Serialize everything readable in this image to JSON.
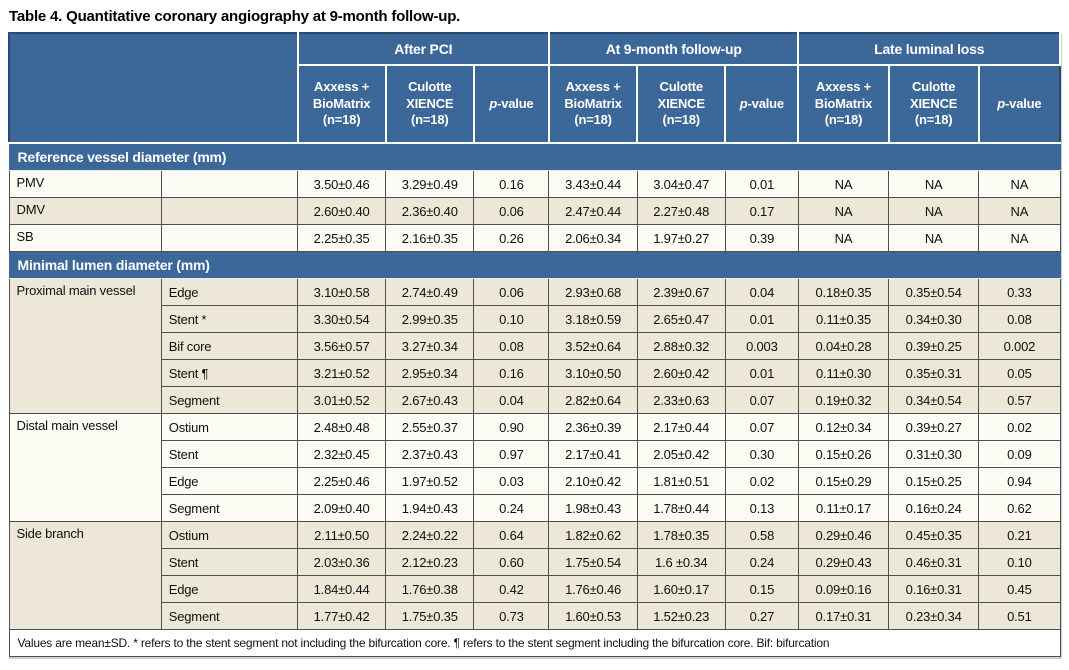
{
  "page_title": "Table 4. Quantitative coronary angiography at 9-month follow-up.",
  "colors": {
    "header_blue": "#3c6799",
    "row_light": "#fcfbf4",
    "row_dark": "#ece7d6"
  },
  "header": {
    "groups": [
      "After PCI",
      "At 9-month follow-up",
      "Late luminal loss"
    ],
    "arm1": "Axxess + BioMatrix (n=18)",
    "arm2": "Culotte XIENCE (n=18)",
    "p_label_italic": "p",
    "p_label_suffix": "-value"
  },
  "sections": [
    {
      "title": "Reference vessel diameter (mm)",
      "groups": [
        {
          "label": "PMV",
          "shade": "light",
          "rows": [
            {
              "sublabel": "",
              "values": [
                "3.50±0.46",
                "3.29±0.49",
                "0.16",
                "3.43±0.44",
                "3.04±0.47",
                "0.01",
                "NA",
                "NA",
                "NA"
              ]
            }
          ]
        },
        {
          "label": "DMV",
          "shade": "dark",
          "rows": [
            {
              "sublabel": "",
              "values": [
                "2.60±0.40",
                "2.36±0.40",
                "0.06",
                "2.47±0.44",
                "2.27±0.48",
                "0.17",
                "NA",
                "NA",
                "NA"
              ]
            }
          ]
        },
        {
          "label": "SB",
          "shade": "light",
          "rows": [
            {
              "sublabel": "",
              "values": [
                "2.25±0.35",
                "2.16±0.35",
                "0.26",
                "2.06±0.34",
                "1.97±0.27",
                "0.39",
                "NA",
                "NA",
                "NA"
              ]
            }
          ]
        }
      ]
    },
    {
      "title": "Minimal lumen diameter (mm)",
      "groups": [
        {
          "label": "Proximal main vessel",
          "shade": "dark",
          "rows": [
            {
              "sublabel": "Edge",
              "values": [
                "3.10±0.58",
                "2.74±0.49",
                "0.06",
                "2.93±0.68",
                "2.39±0.67",
                "0.04",
                "0.18±0.35",
                "0.35±0.54",
                "0.33"
              ]
            },
            {
              "sublabel": "Stent *",
              "values": [
                "3.30±0.54",
                "2.99±0.35",
                "0.10",
                "3.18±0.59",
                "2.65±0.47",
                "0.01",
                "0.11±0.35",
                "0.34±0.30",
                "0.08"
              ]
            },
            {
              "sublabel": "Bif core",
              "values": [
                "3.56±0.57",
                "3.27±0.34",
                "0.08",
                "3.52±0.64",
                "2.88±0.32",
                "0.003",
                "0.04±0.28",
                "0.39±0.25",
                "0.002"
              ]
            },
            {
              "sublabel": "Stent ¶",
              "values": [
                "3.21±0.52",
                "2.95±0.34",
                "0.16",
                "3.10±0.50",
                "2.60±0.42",
                "0.01",
                "0.11±0.30",
                "0.35±0.31",
                "0.05"
              ]
            },
            {
              "sublabel": "Segment",
              "values": [
                "3.01±0.52",
                "2.67±0.43",
                "0.04",
                "2.82±0.64",
                "2.33±0.63",
                "0.07",
                "0.19±0.32",
                "0.34±0.54",
                "0.57"
              ]
            }
          ]
        },
        {
          "label": "Distal main vessel",
          "shade": "light",
          "rows": [
            {
              "sublabel": "Ostium",
              "values": [
                "2.48±0.48",
                "2.55±0.37",
                "0.90",
                "2.36±0.39",
                "2.17±0.44",
                "0.07",
                "0.12±0.34",
                "0.39±0.27",
                "0.02"
              ]
            },
            {
              "sublabel": "Stent",
              "values": [
                "2.32±0.45",
                "2.37±0.43",
                "0.97",
                "2.17±0.41",
                "2.05±0.42",
                "0.30",
                "0.15±0.26",
                "0.31±0.30",
                "0.09"
              ]
            },
            {
              "sublabel": "Edge",
              "values": [
                "2.25±0.46",
                "1.97±0.52",
                "0.03",
                "2.10±0.42",
                "1.81±0.51",
                "0.02",
                "0.15±0.29",
                "0.15±0.25",
                "0.94"
              ]
            },
            {
              "sublabel": "Segment",
              "values": [
                "2.09±0.40",
                "1.94±0.43",
                "0.24",
                "1.98±0.43",
                "1.78±0.44",
                "0.13",
                "0.11±0.17",
                "0.16±0.24",
                "0.62"
              ]
            }
          ]
        },
        {
          "label": "Side branch",
          "shade": "dark",
          "rows": [
            {
              "sublabel": "Ostium",
              "values": [
                "2.11±0.50",
                "2.24±0.22",
                "0.64",
                "1.82±0.62",
                "1.78±0.35",
                "0.58",
                "0.29±0.46",
                "0.45±0.35",
                "0.21"
              ]
            },
            {
              "sublabel": "Stent",
              "values": [
                "2.03±0.36",
                "2.12±0.23",
                "0.60",
                "1.75±0.54",
                "1.6 ±0.34",
                "0.24",
                "0.29±0.43",
                "0.46±0.31",
                "0.10"
              ]
            },
            {
              "sublabel": "Edge",
              "values": [
                "1.84±0.44",
                "1.76±0.38",
                "0.42",
                "1.76±0.46",
                "1.60±0.17",
                "0.15",
                "0.09±0.16",
                "0.16±0.31",
                "0.45"
              ]
            },
            {
              "sublabel": "Segment",
              "values": [
                "1.77±0.42",
                "1.75±0.35",
                "0.73",
                "1.60±0.53",
                "1.52±0.23",
                "0.27",
                "0.17±0.31",
                "0.23±0.34",
                "0.51"
              ]
            }
          ]
        }
      ]
    }
  ],
  "footnote": "Values are mean±SD. * refers to the stent segment not including the bifurcation core. ¶ refers to the stent segment including the bifurcation core. Bif: bifurcation"
}
